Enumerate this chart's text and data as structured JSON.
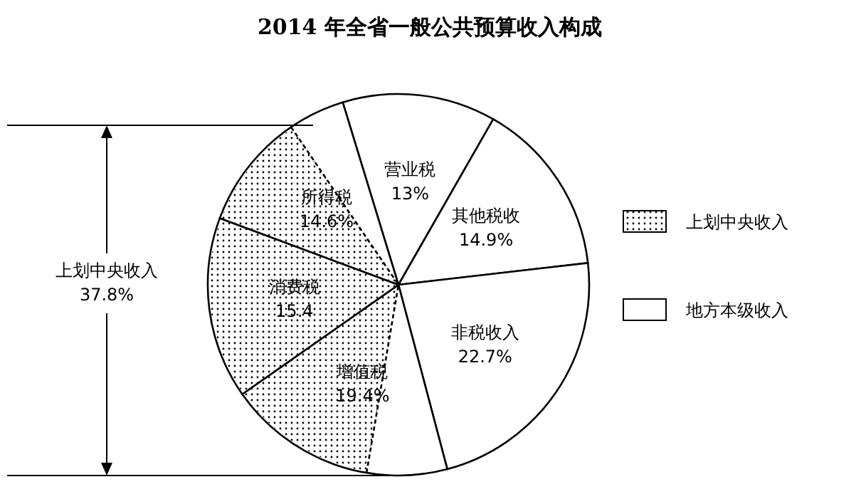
{
  "chart_data": {
    "type": "pie",
    "title": "2014 年全省一般公共预算收入构成",
    "categories": [
      "营业税",
      "其他税收",
      "非税收入",
      "增值税",
      "消费税",
      "所得税"
    ],
    "values": [
      13,
      14.9,
      22.7,
      19.4,
      15.4,
      14.6
    ],
    "value_labels": [
      "13%",
      "14.9%",
      "22.7%",
      "19.4%",
      "15.4",
      "14.6%"
    ],
    "colors": [
      "#ffffff",
      "#ffffff",
      "#ffffff",
      "#ffffff",
      "#ffffff",
      "#ffffff"
    ],
    "annotations": [
      "上划中央收入\n37.8%",
      "上划中央收入",
      "地方本级收入"
    ]
  }
}
